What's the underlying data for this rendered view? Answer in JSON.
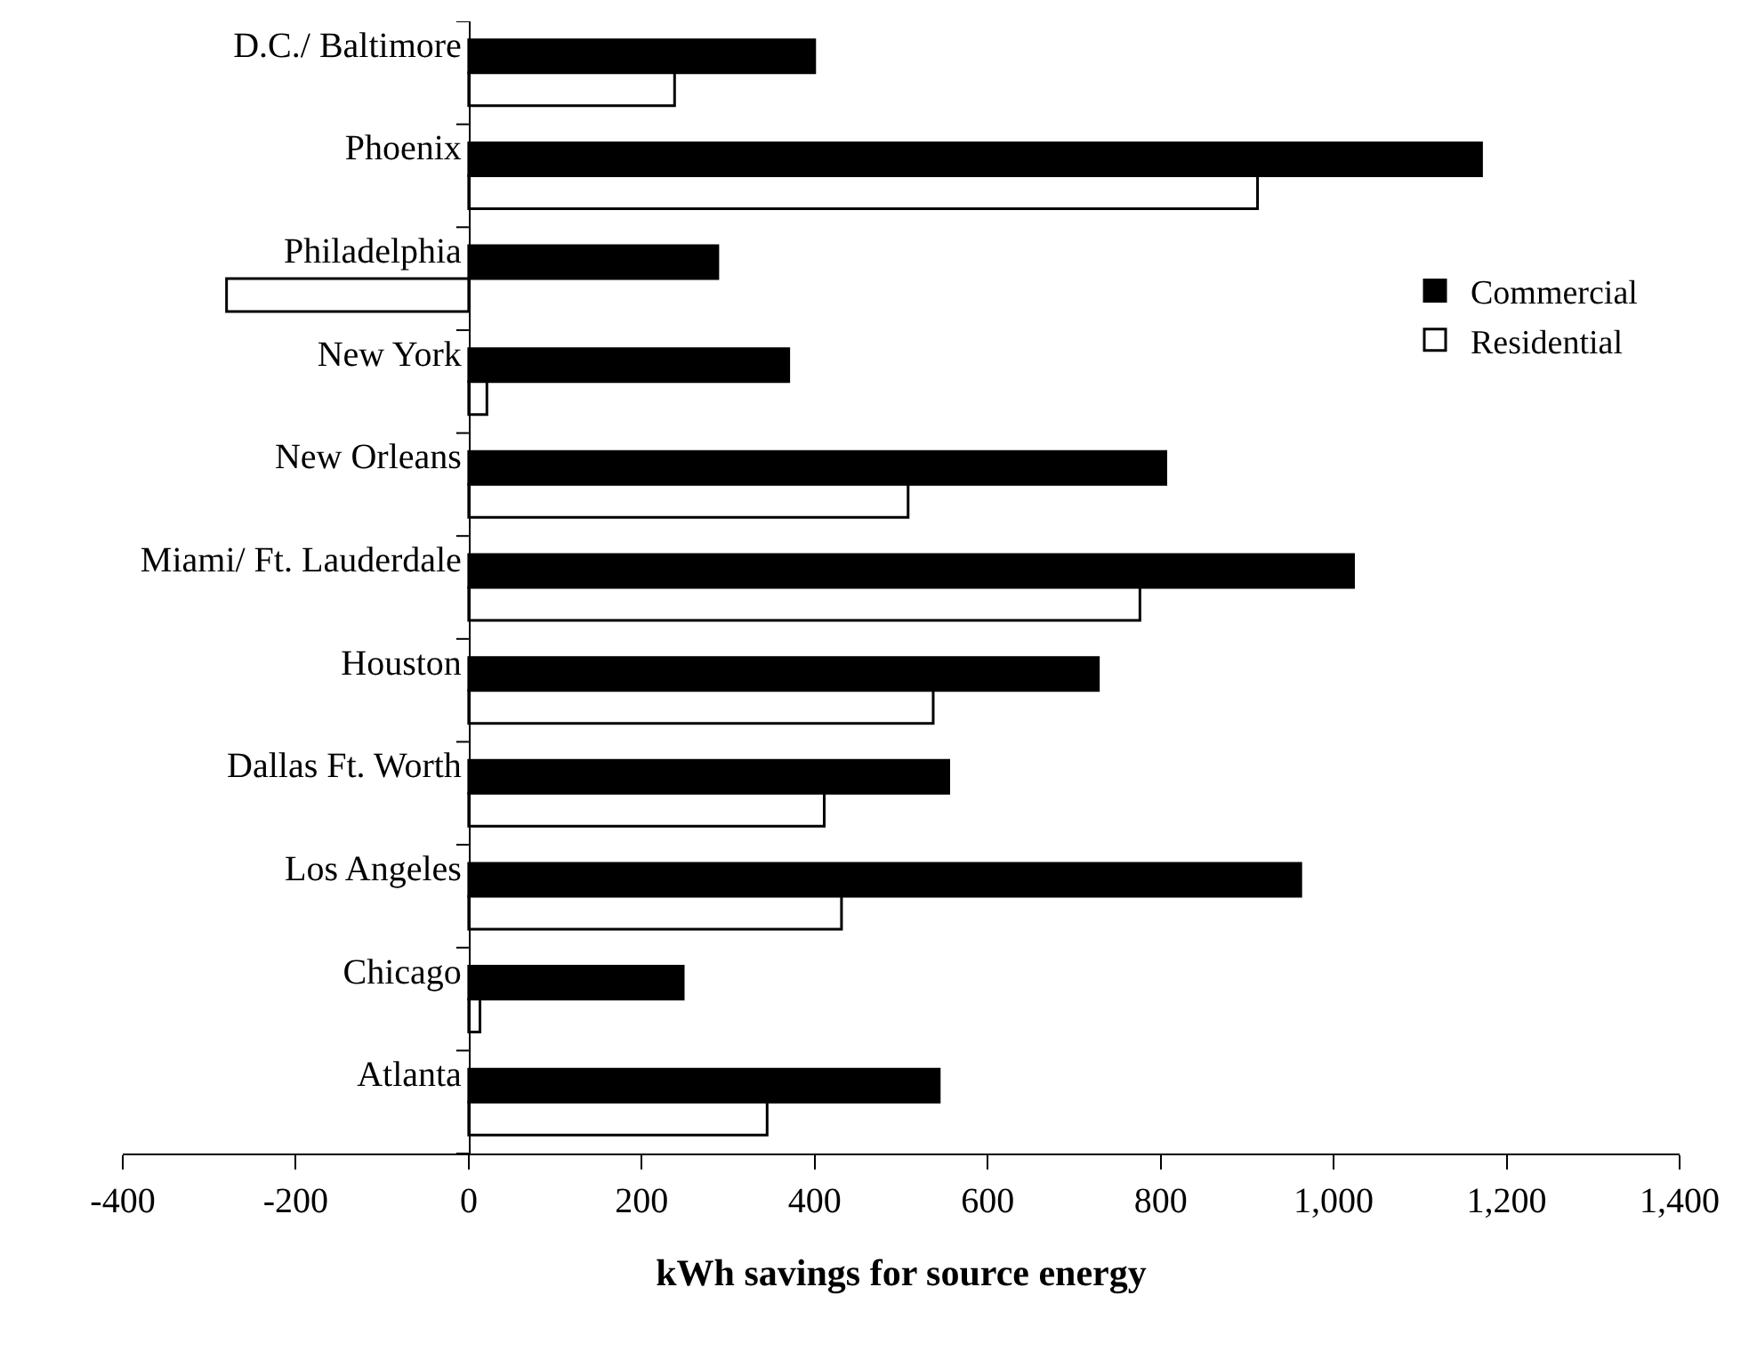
{
  "chart_data": {
    "type": "bar",
    "orientation": "horizontal",
    "xlabel": "kWh savings for source energy",
    "categories": [
      "D.C./ Baltimore",
      "Phoenix",
      "Philadelphia",
      "New York",
      "New Orleans",
      "Miami/ Ft. Lauderdale",
      "Houston",
      "Dallas Ft. Worth",
      "Los Angeles",
      "Chicago",
      "Atlanta"
    ],
    "series": [
      {
        "name": "Commercial",
        "color": "#000000",
        "values": [
          400,
          1171,
          288,
          370,
          806,
          1023,
          728,
          555,
          962,
          248,
          544
        ]
      },
      {
        "name": "Residential",
        "color": "#ffffff",
        "values": [
          238,
          912,
          -280,
          21,
          508,
          776,
          537,
          411,
          431,
          13,
          345
        ]
      }
    ],
    "xlim": [
      -400,
      1400
    ],
    "xticks": [
      -400,
      -200,
      0,
      200,
      400,
      600,
      800,
      {
        "value": 1000,
        "label": "1,000"
      },
      {
        "value": 1200,
        "label": "1,200"
      },
      {
        "value": 1400,
        "label": "1,400"
      }
    ],
    "legend": "right"
  }
}
